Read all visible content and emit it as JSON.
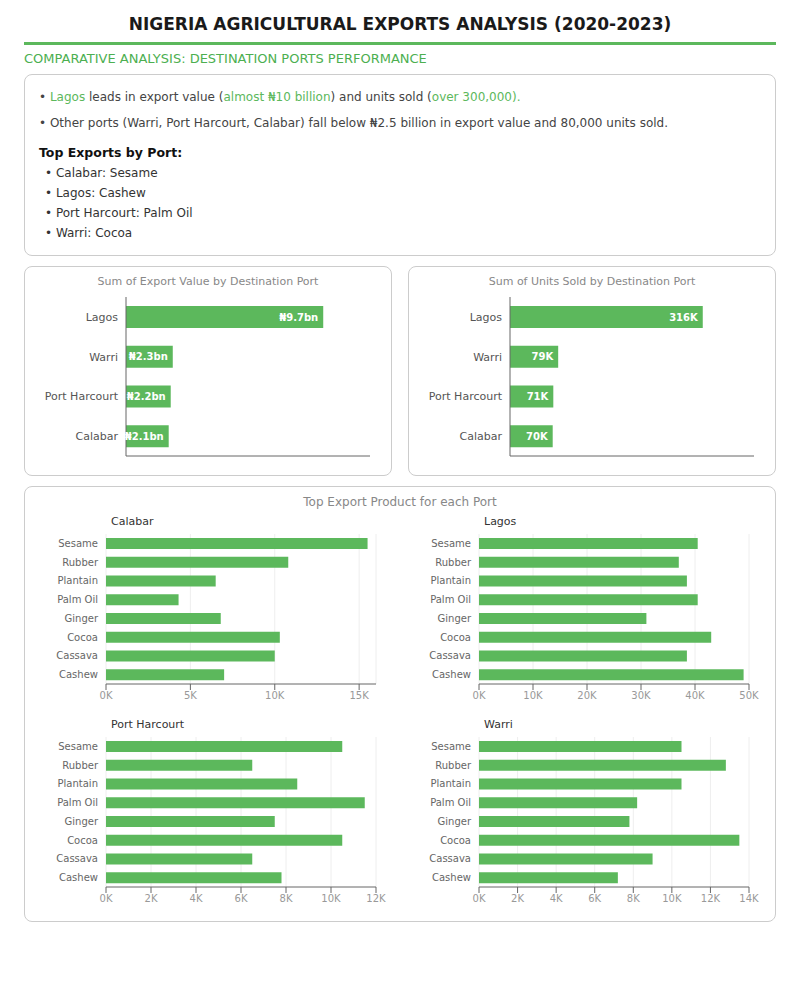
{
  "title": "NIGERIA AGRICULTURAL EXPORTS ANALYSIS (2020-2023)",
  "subtitle": "COMPARATIVE ANALYSIS: DESTINATION PORTS PERFORMANCE",
  "annotations": [
    {
      "parts": [
        {
          "text": "• ",
          "color": "#444444"
        },
        {
          "text": "Lagos",
          "color": "#5cb85c"
        },
        {
          "text": " leads in export value (",
          "color": "#444444"
        },
        {
          "text": "almost ₦10 billion",
          "color": "#5cb85c"
        },
        {
          "text": ") and units sold (",
          "color": "#444444"
        },
        {
          "text": "over 300,000",
          "color": "#5cb85c"
        },
        {
          "text": ").",
          "color": "#5cb85c"
        }
      ]
    },
    {
      "text": "• Other ports (Warri, Port Harcourt, Calabar) fall below ₦2.5 billion in export value and 80,000 units sold."
    },
    {
      "text": "Top Exports by Port:"
    },
    {
      "text": "• Calabar: Sesame"
    },
    {
      "text": "• Lagos: Cashew"
    },
    {
      "text": "• Port Harcourt: Palm Oil"
    },
    {
      "text": "• Warri: Cocoa"
    },
    {
      "text": "Top Export Product for each Port"
    }
  ],
  "chart_data": [
    {
      "type": "bar",
      "orientation": "horizontal",
      "title": "Sum of Export Value by Destination Port",
      "categories": [
        "Lagos",
        "Warri",
        "Port Harcourt",
        "Calabar"
      ],
      "values": [
        9.7,
        2.3,
        2.2,
        2.1
      ],
      "value_labels": [
        "₦9.7bn",
        "₦2.3bn",
        "₦2.2bn",
        "₦2.1bn"
      ],
      "data_labels": true,
      "color": "#5cb85c",
      "xlim": [
        0,
        12
      ],
      "tick_labels": "y"
    },
    {
      "type": "bar",
      "orientation": "horizontal",
      "title": "Sum of Units Sold by Destination Port",
      "categories": [
        "Lagos",
        "Warri",
        "Port Harcourt",
        "Calabar"
      ],
      "values": [
        316,
        79,
        71,
        70
      ],
      "value_labels": [
        "316K",
        "79K",
        "71K",
        "70K"
      ],
      "data_labels": true,
      "color": "#5cb85c",
      "xlim": [
        0,
        400
      ],
      "tick_labels": "y"
    },
    {
      "type": "bar",
      "orientation": "horizontal",
      "title": "Calabar",
      "categories": [
        "Cashew",
        "Cassava",
        "Cocoa",
        "Ginger",
        "Palm Oil",
        "Plantain",
        "Rubber",
        "Sesame"
      ],
      "values": [
        7000,
        10000,
        10300,
        6800,
        4300,
        6500,
        10800,
        15500
      ],
      "color": "#5cb85c",
      "xlim": [
        0,
        16000
      ],
      "xticks": [
        {
          "value": 0,
          "label": "0K"
        },
        {
          "value": 5000,
          "label": "5K"
        },
        {
          "value": 10000,
          "label": "10K"
        },
        {
          "value": 15000,
          "label": "15K"
        }
      ],
      "grid": true
    },
    {
      "type": "bar",
      "orientation": "horizontal",
      "title": "Lagos",
      "categories": [
        "Cashew",
        "Cassava",
        "Cocoa",
        "Ginger",
        "Palm Oil",
        "Plantain",
        "Rubber",
        "Sesame"
      ],
      "values": [
        49000,
        38500,
        43000,
        31000,
        40500,
        38500,
        37000,
        40500
      ],
      "color": "#5cb85c",
      "xlim": [
        0,
        50000
      ],
      "xticks": [
        {
          "value": 0,
          "label": "0K"
        },
        {
          "value": 10000,
          "label": "10K"
        },
        {
          "value": 20000,
          "label": "20K"
        },
        {
          "value": 30000,
          "label": "30K"
        },
        {
          "value": 40000,
          "label": "40K"
        },
        {
          "value": 50000,
          "label": "50K"
        }
      ],
      "grid": true
    },
    {
      "type": "bar",
      "orientation": "horizontal",
      "title": "Port Harcourt",
      "categories": [
        "Cashew",
        "Cassava",
        "Cocoa",
        "Ginger",
        "Palm Oil",
        "Plantain",
        "Rubber",
        "Sesame"
      ],
      "values": [
        7800,
        6500,
        10500,
        7500,
        11500,
        8500,
        6500,
        10500
      ],
      "color": "#5cb85c",
      "xlim": [
        0,
        12000
      ],
      "xticks": [
        {
          "value": 0,
          "label": "0K"
        },
        {
          "value": 2000,
          "label": "2K"
        },
        {
          "value": 4000,
          "label": "4K"
        },
        {
          "value": 6000,
          "label": "6K"
        },
        {
          "value": 8000,
          "label": "8K"
        },
        {
          "value": 10000,
          "label": "10K"
        },
        {
          "value": 12000,
          "label": "12K"
        }
      ],
      "grid": true
    },
    {
      "type": "bar",
      "orientation": "horizontal",
      "title": "Warri",
      "categories": [
        "Cashew",
        "Cassava",
        "Cocoa",
        "Ginger",
        "Palm Oil",
        "Plantain",
        "Rubber",
        "Sesame"
      ],
      "values": [
        7200,
        9000,
        13500,
        7800,
        8200,
        10500,
        12800,
        10500
      ],
      "color": "#5cb85c",
      "xlim": [
        0,
        14000
      ],
      "xticks": [
        {
          "value": 0,
          "label": "0K"
        },
        {
          "value": 2000,
          "label": "2K"
        },
        {
          "value": 4000,
          "label": "4K"
        },
        {
          "value": 6000,
          "label": "6K"
        },
        {
          "value": 8000,
          "label": "8K"
        },
        {
          "value": 10000,
          "label": "10K"
        },
        {
          "value": 12000,
          "label": "12K"
        },
        {
          "value": 14000,
          "label": "14K"
        }
      ],
      "grid": true
    }
  ]
}
